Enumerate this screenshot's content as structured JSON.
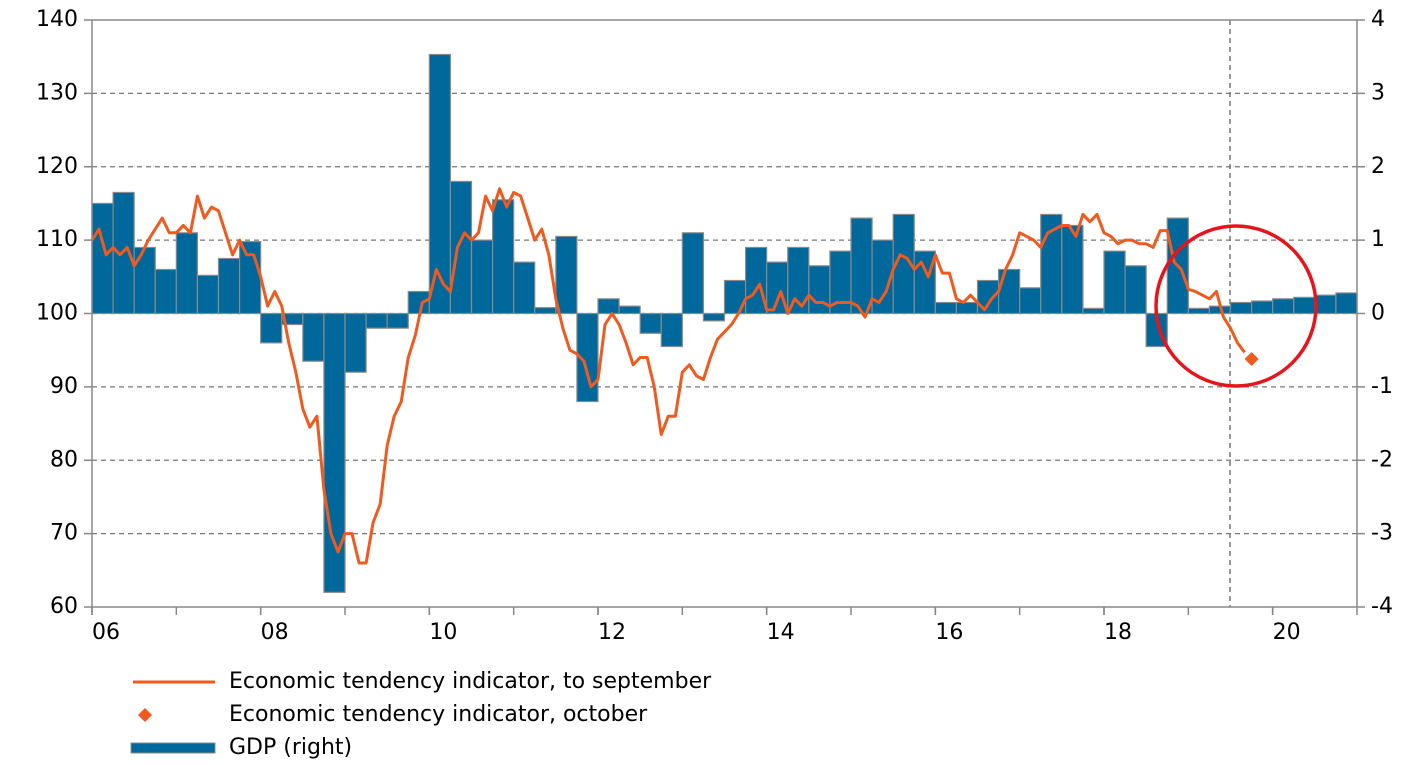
{
  "chart_data": {
    "type": "bar",
    "xlim": [
      2006,
      2021
    ],
    "xticks": [
      {
        "value": 2006,
        "label": "06"
      },
      {
        "value": 2008,
        "label": "08"
      },
      {
        "value": 2010,
        "label": "10"
      },
      {
        "value": 2012,
        "label": "12"
      },
      {
        "value": 2014,
        "label": "14"
      },
      {
        "value": 2016,
        "label": "16"
      },
      {
        "value": 2018,
        "label": "18"
      },
      {
        "value": 2020,
        "label": "20"
      }
    ],
    "ylim": [
      60,
      140
    ],
    "yticks": [
      60,
      70,
      80,
      90,
      100,
      110,
      120,
      130,
      140
    ],
    "y2lim": [
      -4,
      4
    ],
    "y2ticks": [
      -4,
      -3,
      -2,
      -1,
      0,
      1,
      2,
      3,
      4
    ],
    "grid": true,
    "series": [
      {
        "name": "Economic tendency indicator, to september",
        "type": "line",
        "color": "#f05a1e",
        "x": [
          2006,
          2006.083,
          2006.167,
          2006.25,
          2006.333,
          2006.417,
          2006.5,
          2006.583,
          2006.667,
          2006.75,
          2006.833,
          2006.917,
          2007,
          2007.083,
          2007.167,
          2007.25,
          2007.333,
          2007.417,
          2007.5,
          2007.583,
          2007.667,
          2007.75,
          2007.833,
          2007.917,
          2008,
          2008.083,
          2008.167,
          2008.25,
          2008.333,
          2008.417,
          2008.5,
          2008.583,
          2008.667,
          2008.75,
          2008.833,
          2008.917,
          2009,
          2009.083,
          2009.167,
          2009.25,
          2009.333,
          2009.417,
          2009.5,
          2009.583,
          2009.667,
          2009.75,
          2009.833,
          2009.917,
          2010,
          2010.083,
          2010.167,
          2010.25,
          2010.333,
          2010.417,
          2010.5,
          2010.583,
          2010.667,
          2010.75,
          2010.833,
          2010.917,
          2011,
          2011.083,
          2011.167,
          2011.25,
          2011.333,
          2011.417,
          2011.5,
          2011.583,
          2011.667,
          2011.75,
          2011.833,
          2011.917,
          2012,
          2012.083,
          2012.167,
          2012.25,
          2012.333,
          2012.417,
          2012.5,
          2012.583,
          2012.667,
          2012.75,
          2012.833,
          2012.917,
          2013,
          2013.083,
          2013.167,
          2013.25,
          2013.333,
          2013.417,
          2013.5,
          2013.583,
          2013.667,
          2013.75,
          2013.833,
          2013.917,
          2014,
          2014.083,
          2014.167,
          2014.25,
          2014.333,
          2014.417,
          2014.5,
          2014.583,
          2014.667,
          2014.75,
          2014.833,
          2014.917,
          2015,
          2015.083,
          2015.167,
          2015.25,
          2015.333,
          2015.417,
          2015.5,
          2015.583,
          2015.667,
          2015.75,
          2015.833,
          2015.917,
          2016,
          2016.083,
          2016.167,
          2016.25,
          2016.333,
          2016.417,
          2016.5,
          2016.583,
          2016.667,
          2016.75,
          2016.833,
          2016.917,
          2017,
          2017.083,
          2017.167,
          2017.25,
          2017.333,
          2017.417,
          2017.5,
          2017.583,
          2017.667,
          2017.75,
          2017.833,
          2017.917,
          2018,
          2018.083,
          2018.167,
          2018.25,
          2018.333,
          2018.417,
          2018.5,
          2018.583,
          2018.667,
          2018.75,
          2018.833,
          2018.917,
          2019,
          2019.083,
          2019.167,
          2019.25,
          2019.333,
          2019.417,
          2019.5,
          2019.583,
          2019.667
        ],
        "values": [
          110,
          111.5,
          108,
          109,
          108,
          109,
          106.5,
          108,
          110,
          111.5,
          113,
          111,
          111,
          112,
          111,
          116,
          113,
          114.5,
          114,
          111,
          108,
          110,
          108,
          108,
          105,
          101,
          103,
          101,
          96,
          92,
          87,
          84.5,
          86,
          76,
          70,
          67.5,
          70,
          70,
          66,
          66,
          71.5,
          74,
          82,
          86,
          88,
          94,
          97,
          101.5,
          102,
          106,
          104,
          103,
          109,
          111,
          110,
          111,
          116,
          114,
          117,
          114.5,
          116.5,
          116,
          113,
          110,
          111.5,
          108,
          102,
          98,
          95,
          94.5,
          93.5,
          90,
          91,
          98.5,
          100,
          98.5,
          96,
          93,
          94,
          94,
          90,
          83.5,
          86,
          86,
          92,
          93,
          91.5,
          91,
          94,
          96.5,
          97.5,
          98.5,
          100,
          102,
          102.5,
          104,
          100.5,
          100.5,
          103,
          100,
          102,
          101,
          102.5,
          101.5,
          101.5,
          101,
          101.5,
          101.5,
          101.5,
          101,
          99.5,
          102,
          101.5,
          103,
          106,
          108,
          107.5,
          106,
          107,
          105,
          108,
          105.5,
          105.5,
          102,
          101.5,
          102.5,
          101.5,
          100.5,
          102,
          103,
          106,
          108,
          111,
          110.5,
          110,
          109,
          111,
          111.5,
          112,
          112,
          110.5,
          113.5,
          112.5,
          113.5,
          111,
          110.5,
          109.5,
          110,
          110,
          109.5,
          109.5,
          109,
          111.3,
          111.3,
          107,
          106,
          103.3,
          103,
          102.5,
          102,
          103,
          99.5,
          98,
          96,
          94.7
        ]
      },
      {
        "name": "Economic tendency indicator, october",
        "type": "scatter",
        "color": "#f05a1e",
        "x": [
          2019.75
        ],
        "values": [
          93.8
        ]
      },
      {
        "name": "GDP (right)",
        "type": "bar",
        "axis": "y2",
        "color": "#00689a",
        "x": [
          2006,
          2006.25,
          2006.5,
          2006.75,
          2007,
          2007.25,
          2007.5,
          2007.75,
          2008,
          2008.25,
          2008.5,
          2008.75,
          2009,
          2009.25,
          2009.5,
          2009.75,
          2010,
          2010.25,
          2010.5,
          2010.75,
          2011,
          2011.25,
          2011.5,
          2011.75,
          2012,
          2012.25,
          2012.5,
          2012.75,
          2013,
          2013.25,
          2013.5,
          2013.75,
          2014,
          2014.25,
          2014.5,
          2014.75,
          2015,
          2015.25,
          2015.5,
          2015.75,
          2016,
          2016.25,
          2016.5,
          2016.75,
          2017,
          2017.25,
          2017.5,
          2017.75,
          2018,
          2018.25,
          2018.5,
          2018.75,
          2019,
          2019.25,
          2019.5,
          2019.75,
          2020,
          2020.25,
          2020.5,
          2020.75
        ],
        "values": [
          1.5,
          1.65,
          0.9,
          0.6,
          1.1,
          0.52,
          0.75,
          0.98,
          -0.4,
          -0.15,
          -0.65,
          -3.8,
          -0.8,
          -0.2,
          -0.2,
          0.3,
          3.53,
          1.8,
          1.0,
          1.55,
          0.7,
          0.08,
          1.05,
          -1.2,
          0.2,
          0.1,
          -0.27,
          -0.45,
          1.1,
          -0.1,
          0.45,
          0.9,
          0.7,
          0.9,
          0.65,
          0.85,
          1.3,
          1.0,
          1.35,
          0.85,
          0.15,
          0.15,
          0.45,
          0.6,
          0.35,
          1.35,
          1.2,
          0.07,
          0.85,
          0.65,
          -0.45,
          1.3,
          0.07,
          0.1,
          0.15,
          0.17,
          0.2,
          0.22,
          0.25,
          0.28
        ]
      }
    ]
  }
}
